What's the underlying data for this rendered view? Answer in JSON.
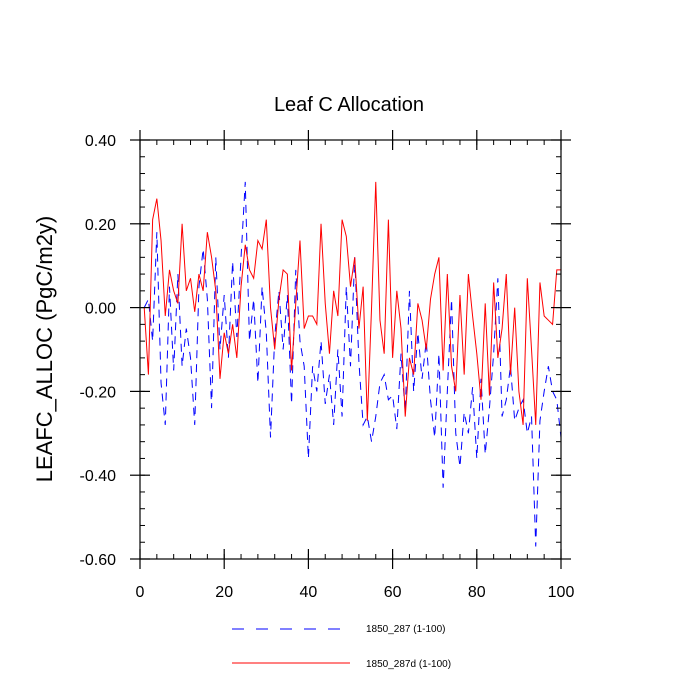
{
  "chart_data": {
    "type": "line",
    "title": "Leaf C Allocation",
    "xlabel": "",
    "ylabel": "LEAFC_ALLOC  (PgC/m2y)",
    "xlim": [
      0,
      100
    ],
    "ylim": [
      -0.6,
      0.4
    ],
    "x_ticks": [
      0,
      20,
      40,
      60,
      80,
      100
    ],
    "x_tick_labels": [
      "0",
      "20",
      "40",
      "60",
      "80",
      "100"
    ],
    "y_ticks": [
      -0.6,
      -0.4,
      -0.2,
      0.0,
      0.2,
      0.4
    ],
    "y_tick_labels": [
      "-0.60",
      "-0.40",
      "-0.20",
      "0.00",
      "0.20",
      "0.40"
    ],
    "legend_position": "bottom-center",
    "series": [
      {
        "name": "1850_287 (1-100)",
        "color": "#0000ff",
        "dash": "dashed",
        "values": [
          0.0,
          0.02,
          -0.08,
          0.18,
          -0.18,
          -0.28,
          0.05,
          -0.15,
          0.08,
          -0.14,
          -0.05,
          -0.12,
          -0.28,
          0.05,
          0.14,
          0.02,
          -0.24,
          0.12,
          -0.1,
          0.03,
          -0.12,
          0.11,
          -0.07,
          0.12,
          0.3,
          -0.08,
          0.02,
          -0.18,
          0.05,
          -0.06,
          -0.31,
          -0.07,
          0.04,
          -0.1,
          0.03,
          -0.23,
          0.09,
          -0.08,
          -0.14,
          -0.36,
          -0.14,
          -0.2,
          -0.08,
          -0.23,
          -0.16,
          -0.28,
          -0.1,
          -0.26,
          0.05,
          -0.14,
          0.12,
          -0.13,
          -0.28,
          -0.26,
          -0.32,
          -0.26,
          -0.18,
          -0.16,
          -0.22,
          -0.21,
          -0.29,
          -0.11,
          -0.25,
          0.04,
          -0.2,
          -0.06,
          -0.17,
          -0.08,
          -0.22,
          -0.31,
          -0.11,
          -0.43,
          -0.2,
          0.02,
          -0.3,
          -0.38,
          -0.25,
          -0.3,
          -0.19,
          -0.36,
          -0.17,
          -0.35,
          -0.24,
          -0.11,
          0.07,
          -0.26,
          -0.22,
          -0.14,
          -0.27,
          -0.24,
          -0.22,
          -0.3,
          -0.26,
          -0.57,
          -0.27,
          -0.2,
          -0.14,
          -0.2,
          -0.22,
          -0.31
        ]
      },
      {
        "name": "1850_287d (1-100)",
        "color": "#ff0000",
        "dash": "solid",
        "values": [
          0.0,
          -0.16,
          0.21,
          0.26,
          0.16,
          -0.02,
          0.09,
          0.04,
          0.01,
          0.2,
          0.04,
          0.07,
          -0.01,
          0.08,
          0.04,
          0.18,
          0.12,
          0.04,
          -0.17,
          -0.06,
          -0.11,
          -0.04,
          -0.12,
          0.05,
          0.15,
          0.09,
          0.07,
          0.16,
          0.14,
          0.21,
          0.0,
          -0.1,
          0.02,
          0.09,
          0.08,
          -0.15,
          0.01,
          0.16,
          -0.05,
          -0.02,
          -0.02,
          -0.04,
          0.2,
          0.01,
          -0.11,
          0.04,
          -0.02,
          0.21,
          0.17,
          0.05,
          0.12,
          -0.05,
          0.05,
          -0.27,
          0.0,
          0.3,
          -0.03,
          -0.11,
          0.21,
          -0.12,
          0.04,
          -0.05,
          -0.26,
          -0.12,
          -0.16,
          0.01,
          -0.03,
          -0.1,
          0.02,
          0.08,
          0.12,
          -0.15,
          0.08,
          -0.14,
          -0.2,
          0.03,
          -0.16,
          0.08,
          -0.02,
          -0.11,
          -0.22,
          0.01,
          -0.21,
          0.06,
          -0.12,
          -0.05,
          0.08,
          -0.16,
          0.0,
          -0.2,
          -0.28,
          0.07,
          -0.1,
          -0.28,
          0.06,
          -0.02,
          -0.03,
          -0.04,
          0.09,
          0.09
        ]
      }
    ]
  }
}
